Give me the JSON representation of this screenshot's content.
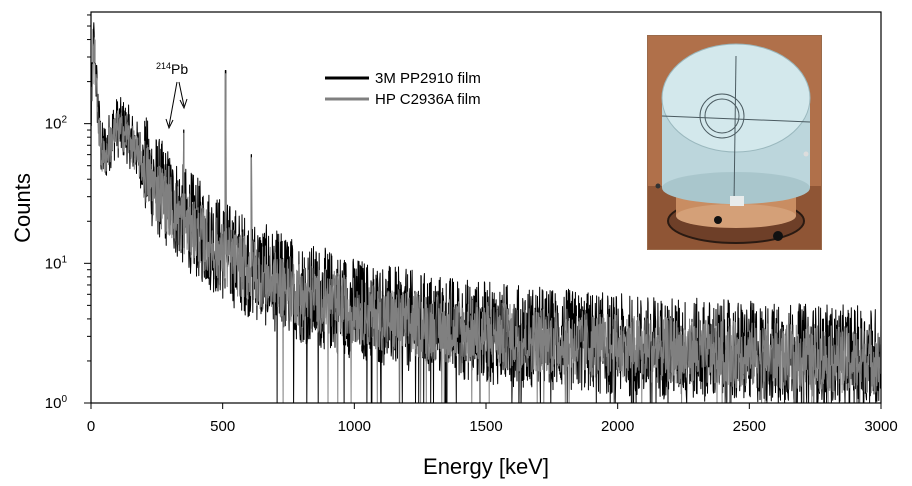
{
  "chart_data": {
    "type": "line",
    "title": "",
    "xlabel": "Energy [keV]",
    "ylabel": "Counts",
    "xlim": [
      0,
      3000
    ],
    "ylim": [
      1,
      630
    ],
    "yscale": "log",
    "x_ticks": [
      0,
      500,
      1000,
      1500,
      2000,
      2500,
      3000
    ],
    "y_ticks": [
      {
        "value": 1,
        "base": "10",
        "exp": "0"
      },
      {
        "value": 10,
        "base": "10",
        "exp": "1"
      },
      {
        "value": 100,
        "base": "10",
        "exp": "2"
      }
    ],
    "grid": false,
    "legend_position": "top-center",
    "series": [
      {
        "name": "3M PP2910 film",
        "color": "#000000",
        "envelope_x": [
          0,
          10,
          20,
          30,
          40,
          60,
          80,
          100,
          130,
          160,
          200,
          250,
          300,
          350,
          400,
          500,
          600,
          700,
          800,
          1000,
          1200,
          1500,
          2000,
          2500,
          3000
        ],
        "envelope_y": [
          100,
          400,
          200,
          100,
          62,
          65,
          85,
          95,
          90,
          72,
          52,
          36,
          28,
          22,
          18,
          12.5,
          9.5,
          7.5,
          6.2,
          4.8,
          3.9,
          3.2,
          2.6,
          2.3,
          2.1
        ]
      },
      {
        "name": "HP C2936A film",
        "color": "#808080",
        "envelope_x": [
          0,
          10,
          20,
          30,
          40,
          60,
          80,
          100,
          130,
          160,
          200,
          250,
          300,
          350,
          400,
          500,
          600,
          700,
          800,
          1000,
          1200,
          1500,
          2000,
          2500,
          3000
        ],
        "envelope_y": [
          100,
          380,
          180,
          95,
          58,
          60,
          80,
          90,
          86,
          68,
          48,
          33,
          26,
          20,
          16.5,
          11.5,
          9,
          7.2,
          6,
          4.6,
          3.7,
          3.1,
          2.5,
          2.2,
          2.0
        ]
      }
    ],
    "peaks": [
      {
        "energy": 295,
        "counts": 52
      },
      {
        "energy": 352,
        "counts": 90
      },
      {
        "energy": 511,
        "counts": 240
      },
      {
        "energy": 609,
        "counts": 60
      }
    ],
    "annotations": [
      {
        "sup": "214",
        "text": "Pb",
        "energy": 300
      }
    ]
  },
  "inset": {
    "icon": "detector-photo"
  }
}
